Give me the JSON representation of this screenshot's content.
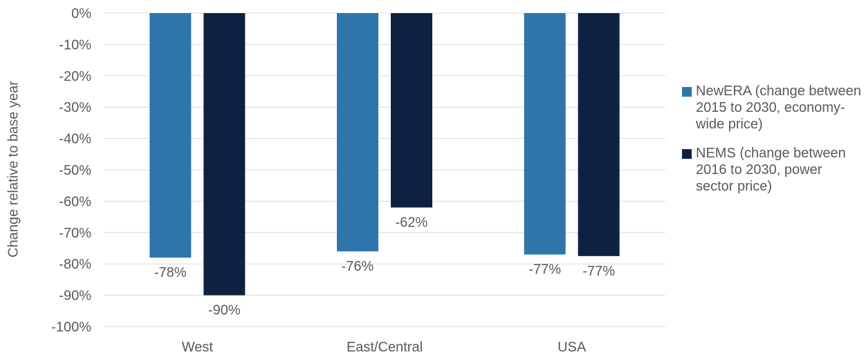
{
  "chart_data": {
    "type": "bar",
    "title": "",
    "xlabel": "",
    "ylabel": "Change relative to base year",
    "categories": [
      "West",
      "East/Central",
      "USA"
    ],
    "ylim": [
      -100,
      0
    ],
    "yticks": [
      0,
      -10,
      -20,
      -30,
      -40,
      -50,
      -60,
      -70,
      -80,
      -90,
      -100
    ],
    "ytick_labels": [
      "0%",
      "-10%",
      "-20%",
      "-30%",
      "-40%",
      "-50%",
      "-60%",
      "-70%",
      "-80%",
      "-90%",
      "-100%"
    ],
    "grid": true,
    "legend_position": "right",
    "series": [
      {
        "name": "NewERA (change between 2015 to 2030, economy-wide price)",
        "color": "#2e75aa",
        "values": [
          -78,
          -76,
          -77
        ],
        "data_labels": [
          "-78%",
          "-76%",
          "-77%"
        ]
      },
      {
        "name": "NEMS (change between 2016 to 2030, power sector price)",
        "color": "#0e2140",
        "values": [
          -90,
          -62,
          -77.5
        ],
        "data_labels": [
          "-90%",
          "-62%",
          "-77%"
        ]
      }
    ]
  }
}
